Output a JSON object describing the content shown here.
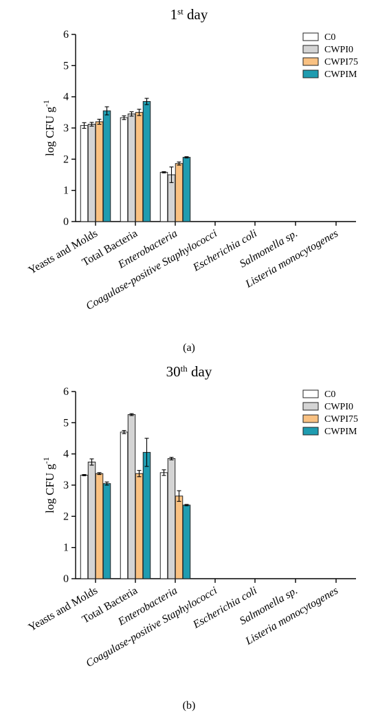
{
  "chart_data": [
    {
      "type": "bar",
      "panel_label": "(a)",
      "title": "1st day",
      "title_main": "1",
      "title_sup": "st",
      "title_rest": " day",
      "ylabel": "log CFU g",
      "ylabel_sup": "-1",
      "ylim": [
        0,
        6
      ],
      "yticks": [
        "0",
        "1",
        "2",
        "3",
        "4",
        "5",
        "6"
      ],
      "legend_position": "top-right",
      "grid": false,
      "categories": [
        "Yeasts and Molds",
        "Total Bacteria",
        "Enterobacteria",
        "Coagulase-positive Staphylococci",
        "Escherichia coli",
        "Salmonella sp.",
        "Listeria monocytogenes"
      ],
      "series": [
        {
          "name": "C0",
          "values": [
            3.08,
            3.33,
            1.58,
            0,
            0,
            0,
            0
          ],
          "errors": [
            0.09,
            0.06,
            0.02,
            0,
            0,
            0,
            0
          ]
        },
        {
          "name": "CWPI0",
          "values": [
            3.12,
            3.45,
            1.5,
            0,
            0,
            0,
            0
          ],
          "errors": [
            0.06,
            0.07,
            0.25,
            0,
            0,
            0,
            0
          ]
        },
        {
          "name": "CWPI75",
          "values": [
            3.2,
            3.5,
            1.86,
            0,
            0,
            0,
            0
          ],
          "errors": [
            0.08,
            0.1,
            0.05,
            0,
            0,
            0,
            0
          ]
        },
        {
          "name": "CWPIM",
          "values": [
            3.55,
            3.85,
            2.06,
            0,
            0,
            0,
            0
          ],
          "errors": [
            0.13,
            0.1,
            0.02,
            0,
            0,
            0,
            0
          ]
        }
      ]
    },
    {
      "type": "bar",
      "panel_label": "(b)",
      "title": "30th day",
      "title_main": "30",
      "title_sup": "th",
      "title_rest": " day",
      "ylabel": "log CFU g",
      "ylabel_sup": "-1",
      "ylim": [
        0,
        6
      ],
      "yticks": [
        "0",
        "1",
        "2",
        "3",
        "4",
        "5",
        "6"
      ],
      "legend_position": "top-right",
      "grid": false,
      "categories": [
        "Yeasts and Molds",
        "Total Bacteria",
        "Enterobacteria",
        "Coagulase-positive Staphylococci",
        "Escherichia coli",
        "Salmonella sp.",
        "Listeria monocytogenes"
      ],
      "series": [
        {
          "name": "C0",
          "values": [
            3.32,
            4.7,
            3.4,
            0,
            0,
            0,
            0
          ],
          "errors": [
            0.02,
            0.05,
            0.09,
            0,
            0,
            0,
            0
          ]
        },
        {
          "name": "CWPI0",
          "values": [
            3.74,
            5.26,
            3.85,
            0,
            0,
            0,
            0
          ],
          "errors": [
            0.1,
            0.03,
            0.04,
            0,
            0,
            0,
            0
          ]
        },
        {
          "name": "CWPI75",
          "values": [
            3.37,
            3.37,
            2.65,
            0,
            0,
            0,
            0
          ],
          "errors": [
            0.03,
            0.1,
            0.17,
            0,
            0,
            0,
            0
          ]
        },
        {
          "name": "CWPIM",
          "values": [
            3.05,
            4.05,
            2.36,
            0,
            0,
            0,
            0
          ],
          "errors": [
            0.05,
            0.45,
            0.02,
            0,
            0,
            0,
            0
          ]
        }
      ]
    }
  ],
  "colors": {
    "C0": "#ffffff",
    "CWPI0": "#d4d4d4",
    "CWPI75": "#f9c182",
    "CWPIM": "#1f9cb0"
  },
  "italic_categories": [
    "Enterobacteria",
    "Coagulase-positive Staphylococci",
    "Escherichia coli",
    "Salmonella sp.",
    "Listeria monocytogenes"
  ]
}
